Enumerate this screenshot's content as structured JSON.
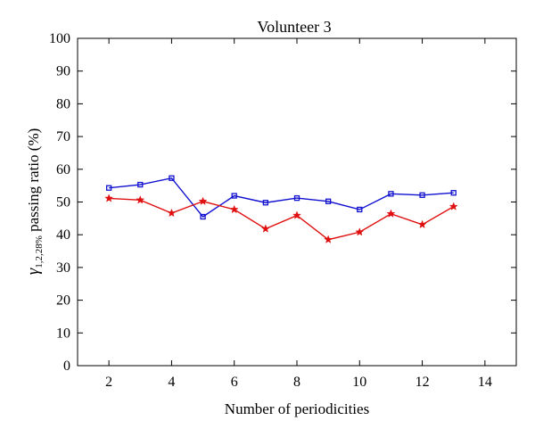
{
  "chart_data": {
    "type": "line",
    "title": "Volunteer 3",
    "xlabel": "Number of periodicities",
    "ylabel": {
      "symbol": "γ",
      "subscript": "1,2,28%",
      "text": " passing ratio (%)"
    },
    "xlim": [
      1,
      15
    ],
    "ylim": [
      0,
      100
    ],
    "xticks": [
      2,
      4,
      6,
      8,
      10,
      12,
      14
    ],
    "yticks": [
      0,
      10,
      20,
      30,
      40,
      50,
      60,
      70,
      80,
      90,
      100
    ],
    "grid": false,
    "series": [
      {
        "color": "#1010d0",
        "marker": "square",
        "x": [
          2,
          3,
          4,
          5,
          6,
          7,
          8,
          9,
          10,
          11,
          12,
          13
        ],
        "y": [
          54.3,
          55.3,
          57.3,
          45.5,
          51.9,
          49.8,
          51.2,
          50.2,
          47.7,
          52.5,
          52.1,
          52.8
        ]
      },
      {
        "color": "#e01010",
        "marker": "star",
        "x": [
          2,
          3,
          4,
          5,
          6,
          7,
          8,
          9,
          10,
          11,
          12,
          13
        ],
        "y": [
          51.1,
          50.6,
          46.6,
          50.2,
          47.7,
          41.8,
          45.9,
          38.5,
          40.8,
          46.4,
          43.1,
          48.6
        ]
      }
    ]
  }
}
